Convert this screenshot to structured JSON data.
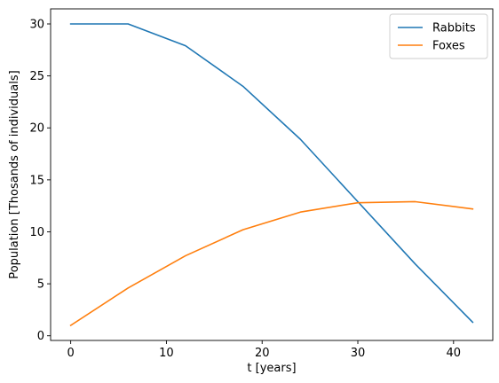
{
  "chart_data": {
    "type": "line",
    "title": "",
    "xlabel": "t [years]",
    "ylabel": "Population [Thosands of individuals]",
    "xlim": [
      -2.1,
      44.1
    ],
    "ylim": [
      -0.45,
      31.45
    ],
    "xticks": [
      0,
      10,
      20,
      30,
      40
    ],
    "yticks": [
      0,
      5,
      10,
      15,
      20,
      25,
      30
    ],
    "grid": false,
    "legend_position": "top-right",
    "x": [
      0,
      6,
      12,
      18,
      24,
      30,
      36,
      42
    ],
    "series": [
      {
        "name": "Rabbits",
        "color": "#1f77b4",
        "values": [
          30.0,
          30.0,
          27.9,
          24.0,
          18.9,
          12.9,
          6.9,
          1.3
        ]
      },
      {
        "name": "Foxes",
        "color": "#ff7f0e",
        "values": [
          1.0,
          4.6,
          7.7,
          10.2,
          11.9,
          12.8,
          12.9,
          12.2
        ]
      }
    ]
  }
}
